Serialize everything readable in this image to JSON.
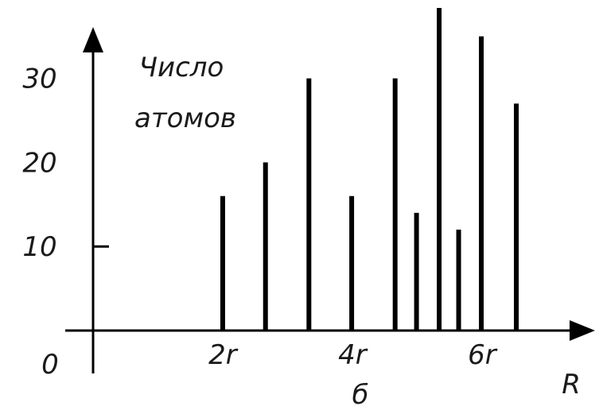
{
  "chart_data": {
    "type": "bar",
    "title": "",
    "ylabel": "Число атомов",
    "ylabel_lines": [
      "Число",
      "атомов"
    ],
    "xlabel": "R",
    "caption": "б",
    "origin_label": "0",
    "x_unit": "r",
    "xlim": [
      0,
      7.56
    ],
    "ylim": [
      0,
      38
    ],
    "yticks": [
      {
        "value": 10,
        "label": "10"
      },
      {
        "value": 20,
        "label": "20"
      },
      {
        "value": 30,
        "label": "30"
      }
    ],
    "xticks": [
      {
        "value": 2,
        "label": "2r"
      },
      {
        "value": 4,
        "label": "4r"
      },
      {
        "value": 6,
        "label": "6r"
      }
    ],
    "x": [
      2.0,
      2.66,
      3.33,
      3.99,
      4.66,
      4.99,
      5.34,
      5.64,
      5.99,
      6.53
    ],
    "values": [
      16,
      20,
      30,
      16,
      30,
      14,
      38.5,
      12,
      35,
      27
    ],
    "bar_color": "#000000",
    "grid": false
  }
}
